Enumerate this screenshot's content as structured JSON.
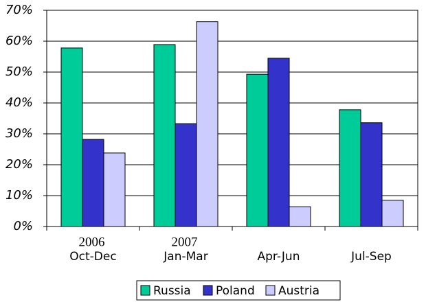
{
  "chart_data": {
    "type": "bar",
    "categories": [
      "Oct-Dec",
      "Jan-Mar",
      "Apr-Jun",
      "Jul-Sep"
    ],
    "years": [
      "2006",
      "2007",
      null,
      null
    ],
    "series": [
      {
        "name": "Russia",
        "color": "#00cc99",
        "values": [
          57.8,
          58.9,
          49.3,
          37.8
        ]
      },
      {
        "name": "Poland",
        "color": "#3333cc",
        "values": [
          28.2,
          33.3,
          54.5,
          33.6
        ]
      },
      {
        "name": "Austria",
        "color": "#ccccff",
        "values": [
          23.8,
          66.3,
          6.4,
          8.5
        ]
      }
    ],
    "ylim": [
      0,
      70
    ],
    "yticks": [
      {
        "value": 0,
        "label": "0%"
      },
      {
        "value": 10,
        "label": "10%"
      },
      {
        "value": 20,
        "label": "20%"
      },
      {
        "value": 30,
        "label": "30%"
      },
      {
        "value": 40,
        "label": "40%"
      },
      {
        "value": 50,
        "label": "50%"
      },
      {
        "value": 60,
        "label": "60%"
      },
      {
        "value": 70,
        "label": "70%"
      }
    ],
    "grid": true,
    "legend": "bottom"
  }
}
